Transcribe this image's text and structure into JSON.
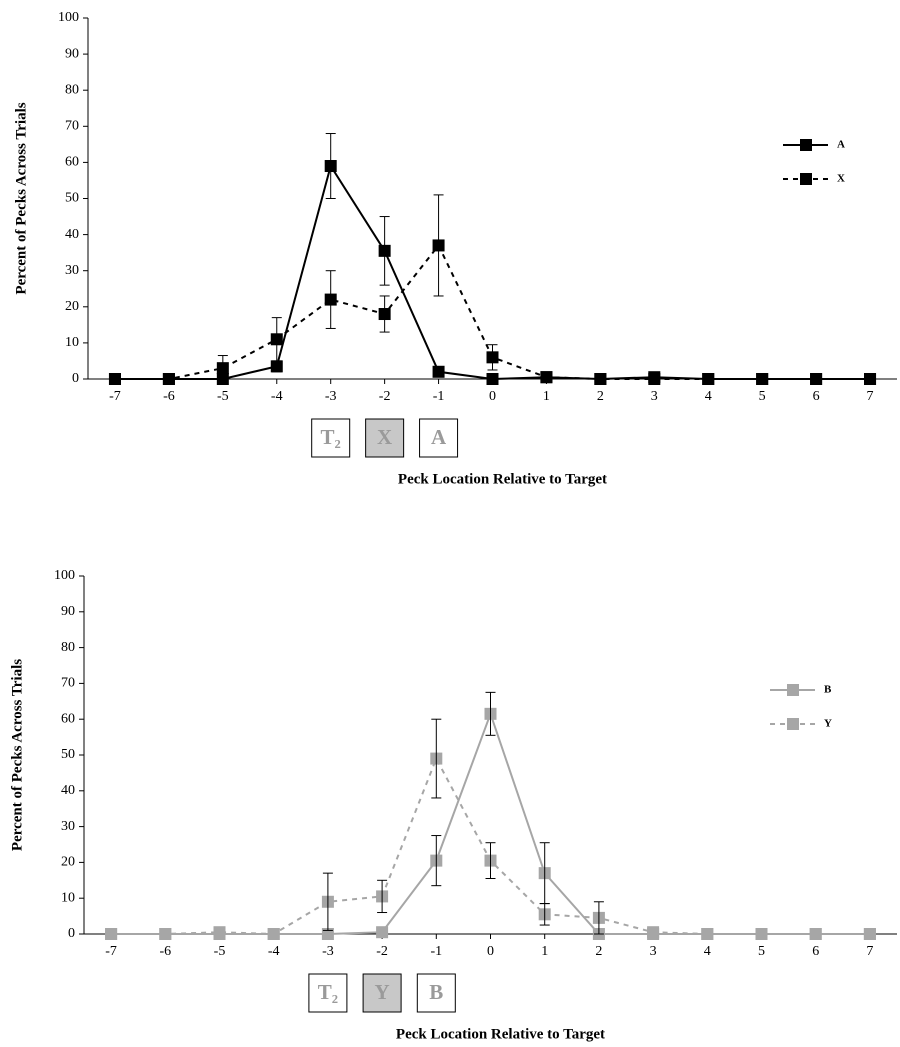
{
  "chart_data": [
    {
      "type": "line",
      "x_label": "Peck Location Relative to Target",
      "y_label": "Percent of Pecks Across Trials",
      "x": [
        -7,
        -6,
        -5,
        -4,
        -3,
        -2,
        -1,
        0,
        1,
        2,
        3,
        4,
        5,
        6,
        7
      ],
      "xlim": [
        -7.5,
        7.5
      ],
      "xticks": [
        -7,
        -6,
        -5,
        -4,
        -3,
        -2,
        -1,
        0,
        1,
        2,
        3,
        4,
        5,
        6,
        7
      ],
      "ylim": [
        0,
        100
      ],
      "yticks": [
        0,
        10,
        20,
        30,
        40,
        50,
        60,
        70,
        80,
        90,
        100
      ],
      "grid": false,
      "legend": "right",
      "series": [
        {
          "name": "A",
          "color": "#000000",
          "dashed": false,
          "values": [
            0,
            0,
            0,
            3.5,
            59,
            35.5,
            2,
            0,
            0.5,
            0,
            0.5,
            0,
            0,
            0,
            0
          ],
          "errors": [
            null,
            null,
            null,
            1.5,
            9,
            9.5,
            1,
            null,
            null,
            null,
            null,
            null,
            null,
            null,
            null
          ]
        },
        {
          "name": "X",
          "color": "#000000",
          "dashed": true,
          "values": [
            0,
            0,
            3,
            11,
            22,
            18,
            37,
            6,
            0.5,
            0,
            0,
            0,
            0,
            0,
            0
          ],
          "errors": [
            null,
            null,
            3.5,
            6,
            8,
            5,
            14,
            3.5,
            null,
            null,
            null,
            null,
            null,
            null,
            null
          ]
        }
      ],
      "stimulus_boxes": [
        {
          "x": -3,
          "label": "T₂",
          "shaded": false
        },
        {
          "x": -2,
          "label": "X",
          "shaded": true
        },
        {
          "x": -1,
          "label": "A",
          "shaded": false
        }
      ]
    },
    {
      "type": "line",
      "x_label": "Peck Location Relative to Target",
      "y_label": "Percent of Pecks Across Trials",
      "x": [
        -7,
        -6,
        -5,
        -4,
        -3,
        -2,
        -1,
        0,
        1,
        2,
        3,
        4,
        5,
        6,
        7
      ],
      "xlim": [
        -7.5,
        7.5
      ],
      "xticks": [
        -7,
        -6,
        -5,
        -4,
        -3,
        -2,
        -1,
        0,
        1,
        2,
        3,
        4,
        5,
        6,
        7
      ],
      "ylim": [
        0,
        100
      ],
      "yticks": [
        0,
        10,
        20,
        30,
        40,
        50,
        60,
        70,
        80,
        90,
        100
      ],
      "grid": false,
      "legend": "right",
      "series": [
        {
          "name": "B",
          "color": "#a6a6a6",
          "dashed": false,
          "values": [
            0,
            0,
            0,
            0,
            0,
            0.5,
            20.5,
            61.5,
            17,
            0,
            0,
            0,
            0,
            0,
            0
          ],
          "errors": [
            null,
            null,
            null,
            null,
            null,
            null,
            7,
            6,
            8.5,
            null,
            null,
            null,
            null,
            null,
            null
          ]
        },
        {
          "name": "Y",
          "color": "#a6a6a6",
          "dashed": true,
          "values": [
            0,
            0,
            0.5,
            0,
            9,
            10.5,
            49,
            20.5,
            5.5,
            4.5,
            0.5,
            0,
            0,
            0,
            0
          ],
          "errors": [
            null,
            null,
            null,
            null,
            8,
            4.5,
            11,
            5,
            3,
            4.5,
            null,
            null,
            null,
            null,
            null
          ]
        }
      ],
      "stimulus_boxes": [
        {
          "x": -3,
          "label": "T₂",
          "shaded": false
        },
        {
          "x": -2,
          "label": "Y",
          "shaded": true
        },
        {
          "x": -1,
          "label": "B",
          "shaded": false
        }
      ]
    }
  ]
}
